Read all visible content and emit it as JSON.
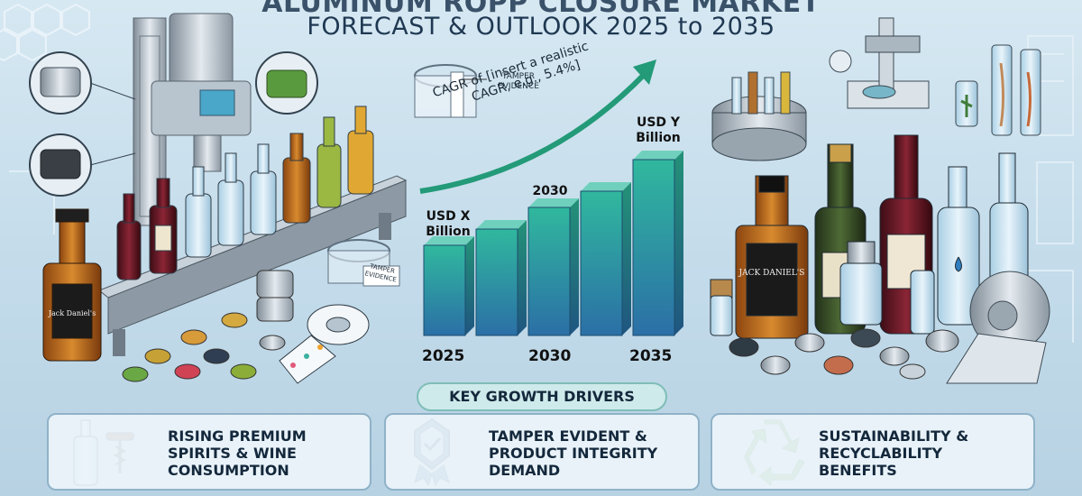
{
  "header": {
    "title_line1": "ALUMINUM ROPP CLOSURE MARKET",
    "title_line2": "FORECAST & OUTLOOK 2025 to 2035"
  },
  "labels": {
    "tamper_evidence_top": [
      "TAMPER",
      "EVIDENCE"
    ],
    "tamper_evidence_tape": [
      "TAMPER",
      "EVIDENCE"
    ]
  },
  "chart_data": {
    "type": "bar",
    "categories": [
      "2025",
      "",
      "2030",
      "",
      "2035"
    ],
    "values": [
      1.0,
      1.18,
      1.42,
      1.6,
      1.95
    ],
    "bar_labels": {
      "first": [
        "USD X",
        "Billion"
      ],
      "middle": "2030",
      "last": [
        "USD Y",
        "Billion"
      ]
    },
    "x_tick_labels": [
      "2025",
      "2030",
      "2035"
    ],
    "annotation": [
      "CAGR of [insert a realistic",
      "CAGR, e.g., 5.4%]"
    ],
    "colors": {
      "bar_top": "#2fb39a",
      "bar_bottom": "#2a77a8",
      "arrow": "#239a78"
    }
  },
  "drivers": {
    "heading": "KEY GROWTH DRIVERS",
    "cards": [
      {
        "lines": [
          "RISING PREMIUM",
          "SPIRITS & WINE",
          "CONSUMPTION"
        ],
        "icon": "bottle-and-corkscrew-icon"
      },
      {
        "lines": [
          "TAMPER EVIDENT &",
          "PRODUCT INTEGRITY",
          "DEMAND"
        ],
        "icon": "shield-check-badge-icon"
      },
      {
        "lines": [
          "SUSTAINABILITY &",
          "RECYCLABILITY",
          "BENEFITS"
        ],
        "icon": "recycle-icon"
      }
    ]
  },
  "brand_labels": {
    "whiskey": "JACK DANIEL'S"
  },
  "colors": {
    "background": "#c3dbea",
    "navy": "#1f3852",
    "teal": "#2fb39a",
    "recycle_green": "#4ca646",
    "wine_red": "#7b1e2c",
    "whiskey_amber": "#b8651c"
  }
}
